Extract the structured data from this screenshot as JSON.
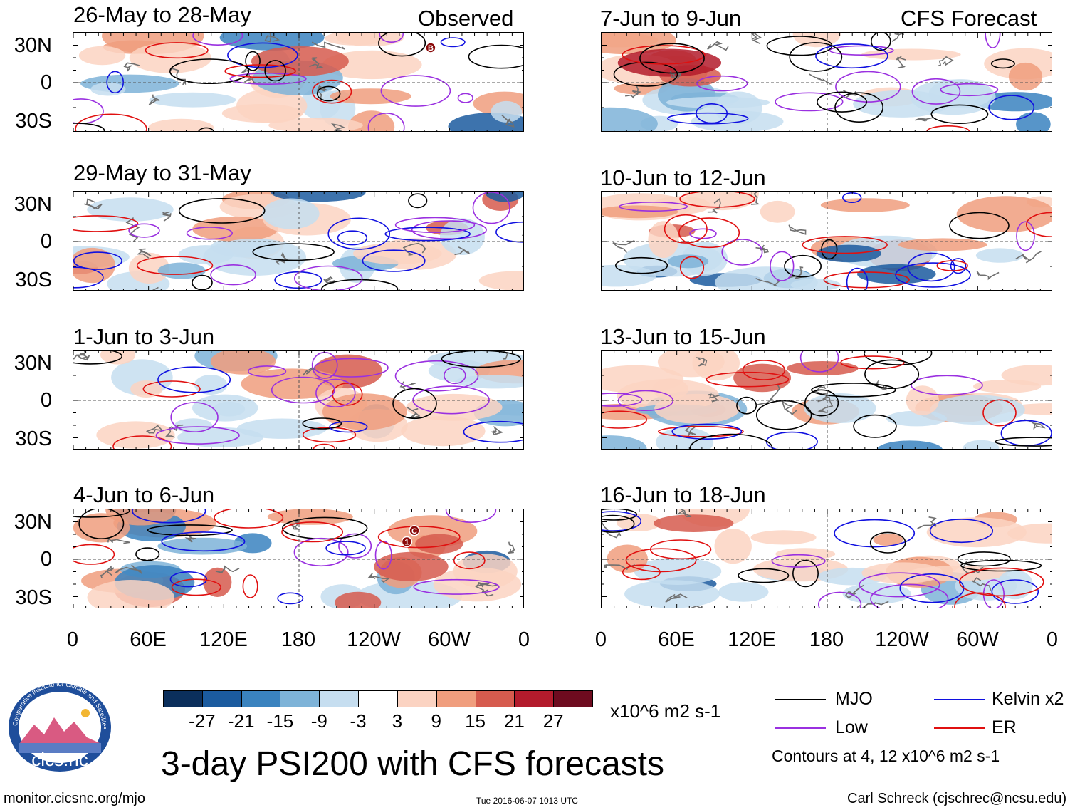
{
  "observed_label": "Observed",
  "forecast_label": "CFS Forecast",
  "lat_labels": [
    "30N",
    "0",
    "30S"
  ],
  "lon_labels": [
    "0",
    "60E",
    "120E",
    "180",
    "120W",
    "60W",
    "0"
  ],
  "panels": [
    {
      "title": "26-May to 28-May",
      "side": "left",
      "row": 0,
      "markers": [
        {
          "label": "B",
          "lon_deg": 285,
          "lat_deg": 28
        }
      ]
    },
    {
      "title": "29-May to 31-May",
      "side": "left",
      "row": 1,
      "markers": []
    },
    {
      "title": "1-Jun to 3-Jun",
      "side": "left",
      "row": 2,
      "markers": []
    },
    {
      "title": "4-Jun to 6-Jun",
      "side": "left",
      "row": 3,
      "markers": [
        {
          "label": "C",
          "lon_deg": 272,
          "lat_deg": 23
        },
        {
          "label": "1",
          "lon_deg": 266,
          "lat_deg": 14
        }
      ]
    },
    {
      "title": "7-Jun to 9-Jun",
      "side": "right",
      "row": 0,
      "markers": []
    },
    {
      "title": "10-Jun to 12-Jun",
      "side": "right",
      "row": 1,
      "markers": []
    },
    {
      "title": "13-Jun to 15-Jun",
      "side": "right",
      "row": 2,
      "markers": []
    },
    {
      "title": "16-Jun to 18-Jun",
      "side": "right",
      "row": 3,
      "markers": []
    }
  ],
  "colorbar": {
    "colors": [
      "#0b2f5c",
      "#1b5b9f",
      "#3a83bf",
      "#7eb3d8",
      "#c6def0",
      "#ffffff",
      "#fbd3c2",
      "#f09e7e",
      "#d65b4e",
      "#b31b2c",
      "#6e0b1f"
    ],
    "labels": [
      "-27",
      "-21",
      "-15",
      "-9",
      "-3",
      "3",
      "9",
      "15",
      "21",
      "27"
    ],
    "units": "x10^6 m2 s-1"
  },
  "legend": {
    "items": [
      {
        "label": "MJO",
        "color": "#000000"
      },
      {
        "label": "Kelvin x2",
        "color": "#1010e0"
      },
      {
        "label": "Low",
        "color": "#9a30e0"
      },
      {
        "label": "ER",
        "color": "#e01010"
      }
    ],
    "note": "Contours at 4, 12 x10^6 m2 s-1"
  },
  "main_title": "3-day PSI200 with CFS forecasts",
  "logo": {
    "arc_text": "Cooperative Institute for Climate and Satellites",
    "name": "cics.nc"
  },
  "footer": {
    "url": "monitor.cicsnc.org/mjo",
    "timestamp": "Tue 2016-06-07 1013 UTC",
    "author": "Carl Schreck (cjschrec@ncsu.edu)"
  }
}
